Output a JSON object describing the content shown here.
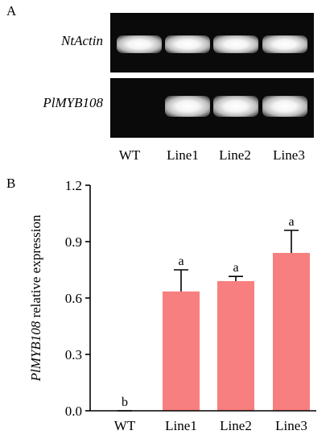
{
  "panel_a": {
    "letter": "A",
    "rows": [
      {
        "label": "NtActin",
        "bands": [
          true,
          true,
          true,
          true
        ]
      },
      {
        "label": "PlMYB108",
        "bands": [
          false,
          true,
          true,
          true
        ]
      }
    ],
    "lanes": [
      "WT",
      "Line1",
      "Line2",
      "Line3"
    ]
  },
  "panel_b": {
    "letter": "B"
  },
  "chart_data": {
    "type": "bar",
    "categories": [
      "WT",
      "Line1",
      "Line2",
      "Line3"
    ],
    "values": [
      0.0,
      0.635,
      0.69,
      0.84
    ],
    "errors": [
      0.0,
      0.115,
      0.025,
      0.12
    ],
    "significance": [
      "b",
      "a",
      "a",
      "a"
    ],
    "ylabel_italic": "PlMYB108",
    "ylabel_rest": "relative expression",
    "xlabel": "",
    "ylim": [
      0,
      1.2
    ],
    "yticks": [
      "0.0",
      "0.3",
      "0.6",
      "0.9",
      "1.2"
    ],
    "bar_color": "#f87f7f",
    "grid": false
  }
}
